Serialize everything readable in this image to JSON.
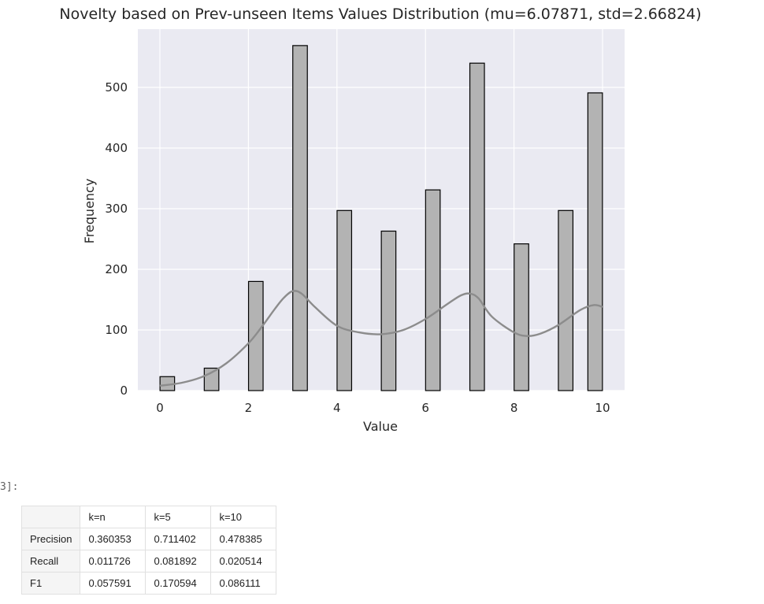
{
  "cell": {
    "prompt": "3]:"
  },
  "chart_data": {
    "type": "bar",
    "title": "Novelty based on Prev-unseen Items Values Distribution (mu=6.07871, std=2.66824)",
    "xlabel": "Value",
    "ylabel": "Frequency",
    "xlim": [
      -0.5,
      10.5
    ],
    "ylim": [
      0,
      570
    ],
    "x_ticks": [
      "0",
      "2",
      "4",
      "6",
      "8",
      "10"
    ],
    "y_ticks": [
      "0",
      "100",
      "200",
      "300",
      "400",
      "500"
    ],
    "grid": true,
    "background_color": "#eaeaf2",
    "bar_color": "#b3b3b3",
    "bar_edge_color": "#000000",
    "kde_color": "#8c8c8c",
    "bars": [
      {
        "x": 0.167,
        "value": 23
      },
      {
        "x": 1.167,
        "value": 37
      },
      {
        "x": 2.167,
        "value": 180
      },
      {
        "x": 3.167,
        "value": 569
      },
      {
        "x": 4.167,
        "value": 297
      },
      {
        "x": 5.167,
        "value": 263
      },
      {
        "x": 6.167,
        "value": 331
      },
      {
        "x": 7.167,
        "value": 540
      },
      {
        "x": 8.167,
        "value": 242
      },
      {
        "x": 9.167,
        "value": 297
      },
      {
        "x": 9.833,
        "value": 491
      }
    ],
    "kde_curve": {
      "x": [
        0,
        0.5,
        1,
        1.5,
        2,
        2.3,
        2.6,
        2.8,
        3,
        3.2,
        3.5,
        4,
        4.5,
        5,
        5.5,
        6,
        6.5,
        6.8,
        7,
        7.2,
        7.5,
        8,
        8.3,
        8.6,
        9,
        9.5,
        9.8,
        10
      ],
      "y": [
        8,
        13,
        24,
        45,
        78,
        105,
        135,
        153,
        164,
        160,
        138,
        107,
        96,
        93,
        100,
        118,
        143,
        157,
        160,
        152,
        122,
        96,
        90,
        94,
        108,
        133,
        141,
        138
      ]
    }
  },
  "table": {
    "columns": [
      "k=n",
      "k=5",
      "k=10"
    ],
    "rows": [
      {
        "label": "Precision",
        "values": [
          "0.360353",
          "0.711402",
          "0.478385"
        ]
      },
      {
        "label": "Recall",
        "values": [
          "0.011726",
          "0.081892",
          "0.020514"
        ]
      },
      {
        "label": "F1",
        "values": [
          "0.057591",
          "0.170594",
          "0.086111"
        ]
      }
    ]
  }
}
